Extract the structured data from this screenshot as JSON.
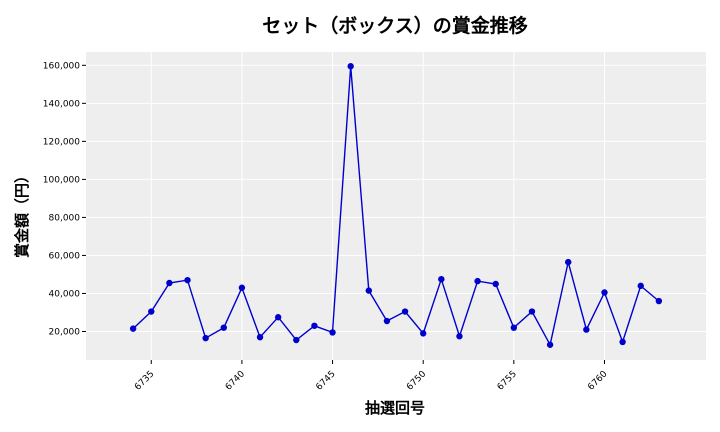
{
  "chart_data": {
    "type": "line",
    "title": "セット（ボックス）の賞金推移",
    "xlabel": "抽選回号",
    "ylabel": "賞金額（円）",
    "xlim": [
      6731.4,
      6765.6
    ],
    "ylim": [
      5000,
      167000
    ],
    "xticks": [
      6735,
      6740,
      6745,
      6750,
      6755,
      6760
    ],
    "yticks": [
      20000,
      40000,
      60000,
      80000,
      100000,
      120000,
      140000,
      160000
    ],
    "ytick_labels": [
      "20,000",
      "40,000",
      "60,000",
      "80,000",
      "100,000",
      "120,000",
      "140,000",
      "160,000"
    ],
    "grid": true,
    "background": "#eeeeee",
    "line_color": "#0000cd",
    "x": [
      6734,
      6735,
      6736,
      6737,
      6738,
      6739,
      6740,
      6741,
      6742,
      6743,
      6744,
      6745,
      6746,
      6747,
      6748,
      6749,
      6750,
      6751,
      6752,
      6753,
      6754,
      6755,
      6756,
      6757,
      6758,
      6759,
      6760,
      6761,
      6762,
      6763
    ],
    "y": [
      21500,
      30500,
      45500,
      47000,
      16500,
      22000,
      43000,
      17000,
      27500,
      15500,
      23000,
      19500,
      159500,
      41500,
      25500,
      30500,
      19000,
      47500,
      17500,
      46500,
      45000,
      22000,
      30500,
      13000,
      56500,
      21000,
      40500,
      14500,
      44000,
      36000
    ]
  }
}
